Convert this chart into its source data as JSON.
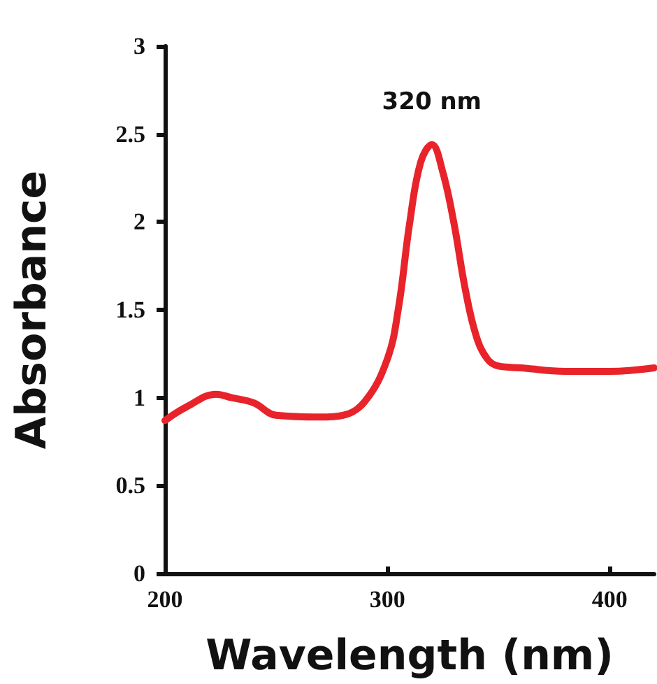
{
  "chart_data": {
    "type": "line",
    "xlabel": "Wavelength (nm)",
    "ylabel": "Absorbance",
    "x": [
      200,
      210,
      223,
      230,
      240,
      250,
      270,
      280,
      290,
      300,
      305,
      310,
      315,
      320,
      325,
      330,
      335,
      340,
      345,
      350,
      360,
      380,
      400,
      420
    ],
    "series": [
      {
        "color": "#e8232a",
        "values": [
          0.87,
          0.95,
          1.02,
          1.0,
          0.97,
          0.9,
          0.89,
          0.9,
          0.98,
          1.22,
          1.51,
          1.99,
          2.34,
          2.44,
          2.28,
          1.99,
          1.62,
          1.35,
          1.22,
          1.18,
          1.17,
          1.15,
          1.15,
          1.17
        ]
      }
    ],
    "annotations": [
      {
        "text": "320 nm",
        "x": 320,
        "y": 2.44
      }
    ],
    "xlim": [
      200,
      420
    ],
    "xticks": [
      200,
      300,
      400
    ],
    "ylim": [
      0,
      3
    ],
    "yticks": [
      0,
      0.5,
      1,
      1.5,
      2,
      2.5,
      3
    ],
    "grid": false,
    "marker": "none",
    "line_style": "solid"
  }
}
